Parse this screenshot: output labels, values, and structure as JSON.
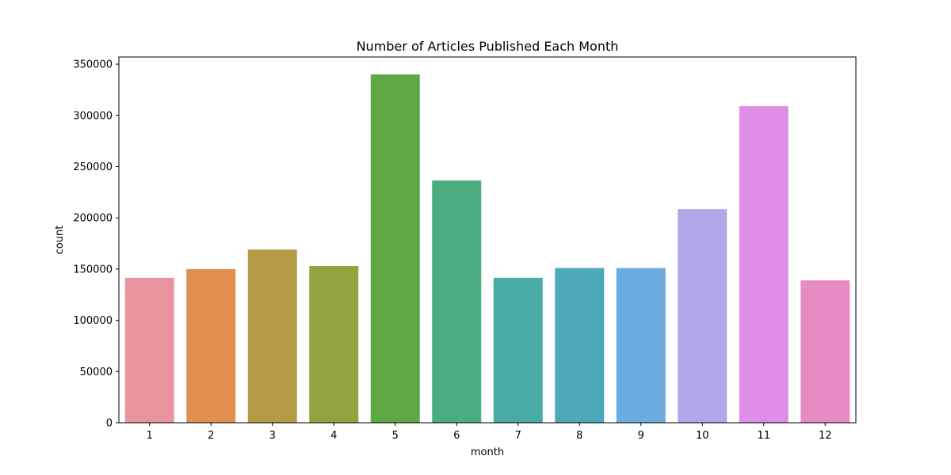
{
  "chart_data": {
    "type": "bar",
    "title": "Number of Articles Published Each Month",
    "xlabel": "month",
    "ylabel": "count",
    "categories": [
      "1",
      "2",
      "3",
      "4",
      "5",
      "6",
      "7",
      "8",
      "9",
      "10",
      "11",
      "12"
    ],
    "values": [
      141500,
      150000,
      169000,
      153000,
      340000,
      236500,
      141500,
      151000,
      151000,
      208500,
      309000,
      139000
    ],
    "colors": [
      "#e8959e",
      "#e29050",
      "#b59b45",
      "#95a242",
      "#5ea946",
      "#4aac7f",
      "#48aba5",
      "#4ba9b8",
      "#6aabe0",
      "#b2a5e8",
      "#de8ee6",
      "#e78cc3"
    ],
    "ylim": [
      0,
      357000
    ],
    "yticks": [
      0,
      50000,
      100000,
      150000,
      200000,
      250000,
      300000,
      350000
    ],
    "ytick_labels": [
      "0",
      "50000",
      "100000",
      "150000",
      "200000",
      "250000",
      "300000",
      "350000"
    ],
    "grid": false,
    "legend": "none"
  }
}
